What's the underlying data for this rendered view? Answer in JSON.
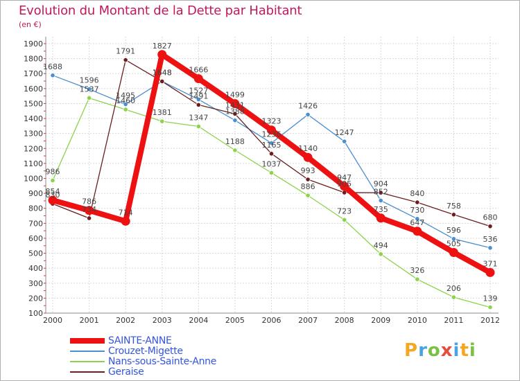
{
  "chart_data": {
    "type": "line",
    "title": "Evolution du Montant de la Dette par Habitant",
    "subtitle": "(en €)",
    "xlabel": "",
    "ylabel": "",
    "ylim": [
      100,
      1900
    ],
    "yticks": [
      100,
      200,
      300,
      400,
      500,
      600,
      700,
      800,
      900,
      1000,
      1100,
      1200,
      1300,
      1400,
      1500,
      1600,
      1700,
      1800,
      1900
    ],
    "x": [
      "2000",
      "2001",
      "2002",
      "2003",
      "2004",
      "2005",
      "2006",
      "2007",
      "2008",
      "2009",
      "2010",
      "2011",
      "2012"
    ],
    "grid": true,
    "legend_position": "bottom-left",
    "series": [
      {
        "name": "SAINTE-ANNE",
        "color": "#ee1111",
        "values": [
          854,
          786,
          714,
          1827,
          1666,
          1499,
          1323,
          1140,
          947,
          735,
          647,
          505,
          371
        ]
      },
      {
        "name": "Crouzet-Migette",
        "color": "#4a8fcf",
        "values": [
          1688,
          1596,
          1495,
          1648,
          1527,
          1388,
          1236,
          1426,
          1247,
          852,
          730,
          596,
          536
        ]
      },
      {
        "name": "Nans-sous-Sainte-Anne",
        "color": "#8cd24a",
        "values": [
          986,
          1537,
          1460,
          1381,
          1347,
          1188,
          1037,
          886,
          723,
          494,
          326,
          206,
          139
        ]
      },
      {
        "name": "Geraise",
        "color": "#6b1e1e",
        "values": [
          830,
          734,
          1791,
          1648,
          1491,
          1431,
          1165,
          993,
          905,
          904,
          840,
          758,
          680
        ]
      }
    ]
  },
  "logo": {
    "text": "Proxiti"
  }
}
